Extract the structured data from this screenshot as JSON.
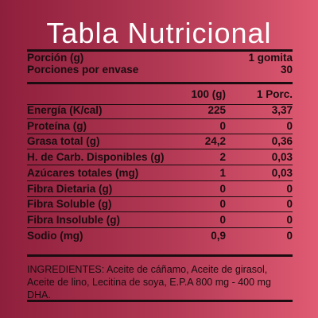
{
  "title": "Tabla Nutricional",
  "meta": [
    {
      "label": "Porción (g)",
      "value": "1 gomita"
    },
    {
      "label": "Porciones por envase",
      "value": "30"
    }
  ],
  "columns": {
    "col1": "100 (g)",
    "col2": "1 Porc."
  },
  "nutrients": [
    {
      "label": "Energía (K/cal)",
      "per100": "225",
      "perPortion": "3,37"
    },
    {
      "label": "Proteína (g)",
      "per100": "0",
      "perPortion": "0"
    },
    {
      "label": "Grasa total (g)",
      "per100": "24,2",
      "perPortion": "0,36"
    },
    {
      "label": "H. de Carb. Disponibles (g)",
      "per100": "2",
      "perPortion": "0,03"
    },
    {
      "label": "Azúcares totales (mg)",
      "per100": "1",
      "perPortion": "0,03"
    },
    {
      "label": "Fibra Dietaria (g)",
      "per100": "0",
      "perPortion": "0"
    },
    {
      "label": "Fibra Soluble (g)",
      "per100": "0",
      "perPortion": "0"
    },
    {
      "label": "Fibra Insoluble (g)",
      "per100": "0",
      "perPortion": "0"
    },
    {
      "label": "Sodio (mg)",
      "per100": "0,9",
      "perPortion": "0"
    }
  ],
  "ingredients": "INGREDIENTES: Aceite de cáñamo, Aceite de girasol, Aceite de lino, Lecitina de soya, E.P.A 800 mg  - 400 mg DHA.",
  "colors": {
    "gradient_start": "#8e1f3c",
    "gradient_end": "#e05b73",
    "text": "#1a0c10",
    "title": "#ffffff"
  }
}
